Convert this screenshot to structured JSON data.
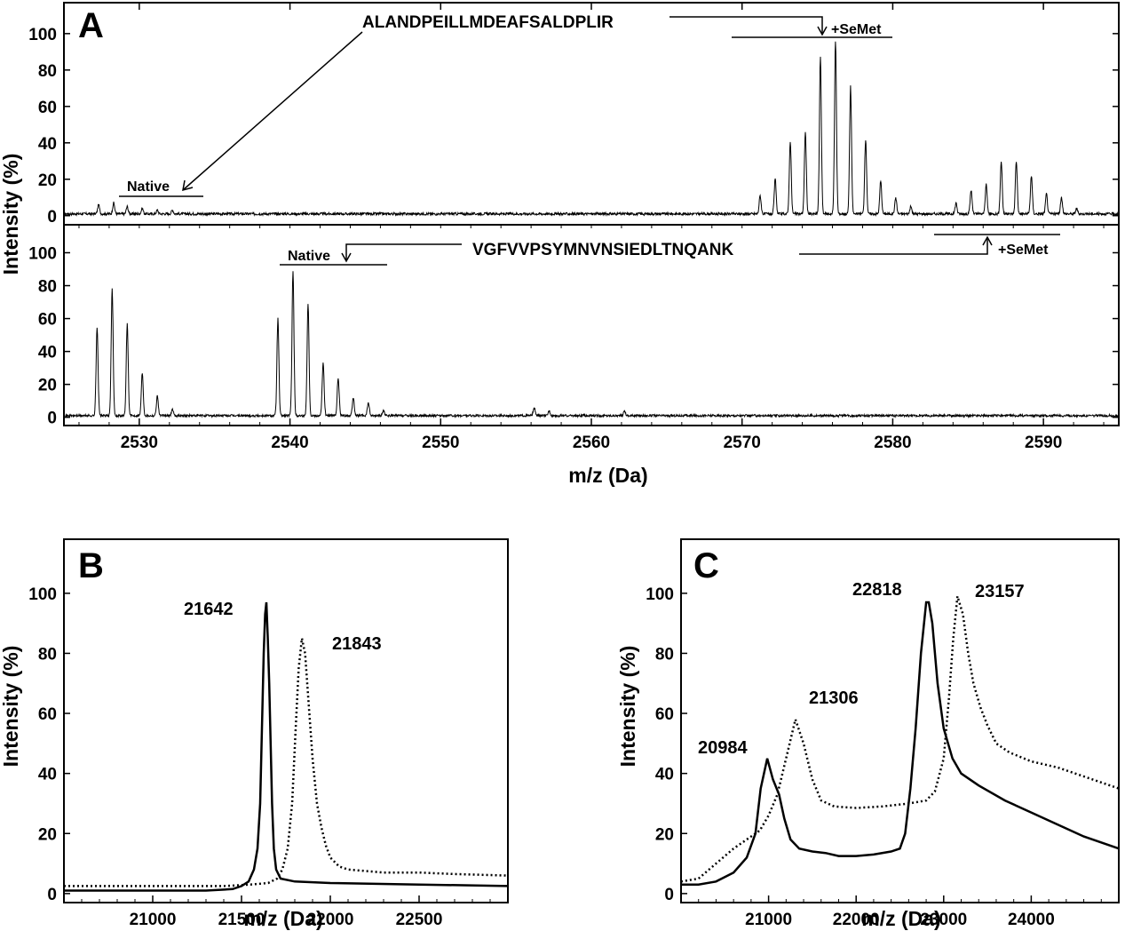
{
  "chart_data": [
    {
      "panel": "A",
      "type": "line",
      "xlabel": "m/z (Da)",
      "ylabel": "Intensity (%)",
      "xlim": [
        2525,
        2595
      ],
      "x_ticks": [
        2530,
        2540,
        2550,
        2560,
        2570,
        2580,
        2590
      ],
      "subplots": [
        {
          "position": "top",
          "ylim": [
            -5,
            117
          ],
          "y_ticks": [
            0,
            20,
            40,
            60,
            80,
            100
          ],
          "annotations": {
            "peptide": "ALANDPEILLMDEAFSALDPLIR",
            "native_label": "Native",
            "semet_label": "+SeMet"
          },
          "peaks": [
            {
              "x": 2527.3,
              "y": 5
            },
            {
              "x": 2528.3,
              "y": 6
            },
            {
              "x": 2529.2,
              "y": 4
            },
            {
              "x": 2530.2,
              "y": 3
            },
            {
              "x": 2531.2,
              "y": 2
            },
            {
              "x": 2532.2,
              "y": 2
            },
            {
              "x": 2571.2,
              "y": 10
            },
            {
              "x": 2572.2,
              "y": 19
            },
            {
              "x": 2573.2,
              "y": 40
            },
            {
              "x": 2574.2,
              "y": 45
            },
            {
              "x": 2575.2,
              "y": 86
            },
            {
              "x": 2576.2,
              "y": 95
            },
            {
              "x": 2577.2,
              "y": 70
            },
            {
              "x": 2578.2,
              "y": 41
            },
            {
              "x": 2579.2,
              "y": 18
            },
            {
              "x": 2580.2,
              "y": 9
            },
            {
              "x": 2581.2,
              "y": 4
            },
            {
              "x": 2584.2,
              "y": 6
            },
            {
              "x": 2585.2,
              "y": 13
            },
            {
              "x": 2586.2,
              "y": 16
            },
            {
              "x": 2587.2,
              "y": 29
            },
            {
              "x": 2588.2,
              "y": 29
            },
            {
              "x": 2589.2,
              "y": 21
            },
            {
              "x": 2590.2,
              "y": 11
            },
            {
              "x": 2591.2,
              "y": 9
            },
            {
              "x": 2592.2,
              "y": 3
            }
          ]
        },
        {
          "position": "bottom",
          "ylim": [
            -5,
            117
          ],
          "y_ticks": [
            0,
            20,
            40,
            60,
            80,
            100
          ],
          "annotations": {
            "peptide": "VGFVVPSYMNVNSIEDLTNQANK",
            "native_label": "Native",
            "semet_label": "+SeMet"
          },
          "peaks": [
            {
              "x": 2527.2,
              "y": 54
            },
            {
              "x": 2528.2,
              "y": 77
            },
            {
              "x": 2529.2,
              "y": 56
            },
            {
              "x": 2530.2,
              "y": 26
            },
            {
              "x": 2531.2,
              "y": 12
            },
            {
              "x": 2532.2,
              "y": 4
            },
            {
              "x": 2539.2,
              "y": 59
            },
            {
              "x": 2540.2,
              "y": 88
            },
            {
              "x": 2541.2,
              "y": 68
            },
            {
              "x": 2542.2,
              "y": 32
            },
            {
              "x": 2543.2,
              "y": 23
            },
            {
              "x": 2544.2,
              "y": 11
            },
            {
              "x": 2545.2,
              "y": 8
            },
            {
              "x": 2546.2,
              "y": 3
            },
            {
              "x": 2556.2,
              "y": 5
            },
            {
              "x": 2557.2,
              "y": 3
            },
            {
              "x": 2562.2,
              "y": 3
            }
          ]
        }
      ]
    },
    {
      "panel": "B",
      "type": "line",
      "xlabel": "m/z (Da)",
      "ylabel": "Intensity (%)",
      "xlim": [
        20500,
        23000
      ],
      "ylim": [
        -3,
        118
      ],
      "x_ticks": [
        21000,
        21500,
        22000,
        22500
      ],
      "y_ticks": [
        0,
        20,
        40,
        60,
        80,
        100
      ],
      "peak_labels": [
        "21642",
        "21843"
      ],
      "series": [
        {
          "style": "solid",
          "points": [
            [
              20500,
              1
            ],
            [
              21000,
              1
            ],
            [
              21300,
              1
            ],
            [
              21450,
              1.5
            ],
            [
              21500,
              2.5
            ],
            [
              21540,
              4
            ],
            [
              21570,
              8
            ],
            [
              21590,
              15
            ],
            [
              21605,
              30
            ],
            [
              21615,
              55
            ],
            [
              21625,
              80
            ],
            [
              21633,
              93
            ],
            [
              21640,
              97
            ],
            [
              21648,
              85
            ],
            [
              21656,
              70
            ],
            [
              21664,
              50
            ],
            [
              21672,
              30
            ],
            [
              21682,
              15
            ],
            [
              21695,
              8
            ],
            [
              21720,
              5
            ],
            [
              21800,
              4
            ],
            [
              22000,
              3.5
            ],
            [
              22500,
              3
            ],
            [
              23000,
              2.5
            ]
          ]
        },
        {
          "style": "dotted",
          "points": [
            [
              20500,
              2.5
            ],
            [
              21000,
              2.5
            ],
            [
              21400,
              2.5
            ],
            [
              21550,
              3
            ],
            [
              21650,
              3.5
            ],
            [
              21700,
              5
            ],
            [
              21730,
              8
            ],
            [
              21760,
              15
            ],
            [
              21785,
              30
            ],
            [
              21805,
              55
            ],
            [
              21822,
              75
            ],
            [
              21840,
              85
            ],
            [
              21858,
              80
            ],
            [
              21876,
              65
            ],
            [
              21900,
              45
            ],
            [
              21925,
              30
            ],
            [
              21950,
              22
            ],
            [
              21975,
              16
            ],
            [
              22000,
              12
            ],
            [
              22050,
              9
            ],
            [
              22100,
              8
            ],
            [
              22300,
              7
            ],
            [
              22500,
              7
            ],
            [
              22700,
              6.5
            ],
            [
              23000,
              6
            ]
          ]
        }
      ]
    },
    {
      "panel": "C",
      "type": "line",
      "xlabel": "m/z (Da)",
      "ylabel": "Intensity (%)",
      "xlim": [
        20000,
        25000
      ],
      "ylim": [
        -3,
        118
      ],
      "x_ticks": [
        21000,
        22000,
        23000,
        24000
      ],
      "y_ticks": [
        0,
        20,
        40,
        60,
        80,
        100
      ],
      "peak_labels": [
        "20984",
        "21306",
        "22818",
        "23157"
      ],
      "series": [
        {
          "style": "solid",
          "points": [
            [
              20000,
              3
            ],
            [
              20200,
              3
            ],
            [
              20400,
              4
            ],
            [
              20600,
              7
            ],
            [
              20750,
              12
            ],
            [
              20850,
              20
            ],
            [
              20910,
              35
            ],
            [
              20985,
              45
            ],
            [
              21050,
              38
            ],
            [
              21120,
              33
            ],
            [
              21180,
              25
            ],
            [
              21250,
              18
            ],
            [
              21350,
              15
            ],
            [
              21500,
              14
            ],
            [
              21650,
              13.5
            ],
            [
              21800,
              12.5
            ],
            [
              22000,
              12.5
            ],
            [
              22200,
              13
            ],
            [
              22400,
              14
            ],
            [
              22500,
              15
            ],
            [
              22560,
              20
            ],
            [
              22620,
              35
            ],
            [
              22680,
              55
            ],
            [
              22740,
              80
            ],
            [
              22800,
              97
            ],
            [
              22830,
              97
            ],
            [
              22870,
              90
            ],
            [
              22930,
              70
            ],
            [
              23000,
              55
            ],
            [
              23100,
              45
            ],
            [
              23200,
              40
            ],
            [
              23400,
              36
            ],
            [
              23700,
              31
            ],
            [
              24000,
              27
            ],
            [
              24300,
              23
            ],
            [
              24600,
              19
            ],
            [
              25000,
              15
            ]
          ]
        },
        {
          "style": "dotted",
          "points": [
            [
              20000,
              4
            ],
            [
              20200,
              5
            ],
            [
              20400,
              10
            ],
            [
              20600,
              15
            ],
            [
              20750,
              18
            ],
            [
              20900,
              21
            ],
            [
              21000,
              26
            ],
            [
              21100,
              33
            ],
            [
              21200,
              45
            ],
            [
              21306,
              58
            ],
            [
              21400,
              50
            ],
            [
              21500,
              38
            ],
            [
              21600,
              31
            ],
            [
              21750,
              29
            ],
            [
              22000,
              28.5
            ],
            [
              22300,
              29
            ],
            [
              22600,
              30
            ],
            [
              22800,
              31
            ],
            [
              22900,
              34
            ],
            [
              23000,
              45
            ],
            [
              23060,
              65
            ],
            [
              23110,
              85
            ],
            [
              23157,
              99
            ],
            [
              23220,
              93
            ],
            [
              23280,
              80
            ],
            [
              23340,
              70
            ],
            [
              23420,
              62
            ],
            [
              23500,
              56
            ],
            [
              23600,
              50
            ],
            [
              23750,
              47
            ],
            [
              24000,
              44
            ],
            [
              24300,
              42
            ],
            [
              24600,
              39
            ],
            [
              25000,
              35
            ]
          ]
        }
      ]
    }
  ]
}
